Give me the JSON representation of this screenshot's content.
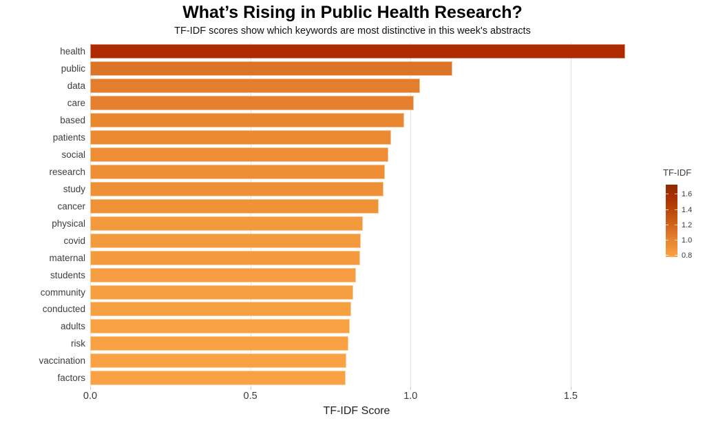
{
  "header": {
    "title": "What’s Rising in Public Health Research?",
    "subtitle": "TF-IDF scores show which keywords are most distinctive in this week's abstracts"
  },
  "chart_data": {
    "type": "bar",
    "orientation": "horizontal",
    "title": "What’s Rising in Public Health Research?",
    "subtitle": "TF-IDF scores show which keywords are most distinctive in this week's abstracts",
    "xlabel": "TF-IDF Score",
    "ylabel": "",
    "xlim": [
      0,
      1.73
    ],
    "x_ticks": [
      0,
      0.5,
      1.0,
      1.5
    ],
    "x_tick_labels": [
      "0.0",
      "0.5",
      "1.0",
      "1.5"
    ],
    "grid": true,
    "categories": [
      "health",
      "public",
      "data",
      "care",
      "based",
      "patients",
      "social",
      "research",
      "study",
      "cancer",
      "physical",
      "covid",
      "maternal",
      "students",
      "community",
      "conducted",
      "adults",
      "risk",
      "vaccination",
      "factors"
    ],
    "values": [
      1.67,
      1.13,
      1.03,
      1.01,
      0.98,
      0.94,
      0.93,
      0.92,
      0.915,
      0.9,
      0.85,
      0.845,
      0.842,
      0.83,
      0.82,
      0.815,
      0.81,
      0.805,
      0.8,
      0.798
    ],
    "bar_colors": [
      "#AE2B02",
      "#DC7428",
      "#E37E2C",
      "#E5812E",
      "#E98630",
      "#EC8A32",
      "#ED8D34",
      "#EE8F35",
      "#EE9036",
      "#EF9137",
      "#F39A3D",
      "#F39A3D",
      "#F49B3E",
      "#F59D40",
      "#F69F41",
      "#F6A041",
      "#F7A142",
      "#F7A142",
      "#F8A243",
      "#F8A243"
    ],
    "legend": {
      "title": "TF-IDF",
      "position": "right",
      "kind": "gradient",
      "domain": [
        0.775,
        1.72
      ],
      "tick_values": [
        1.6,
        1.4,
        1.2,
        1.0,
        0.8
      ],
      "tick_labels": [
        "1.6",
        "1.4",
        "1.2",
        "1.0",
        "0.8"
      ],
      "gradient_stops": [
        {
          "value": 0.775,
          "color": "#F9A445"
        },
        {
          "value": 0.9,
          "color": "#EF9036"
        },
        {
          "value": 1.0,
          "color": "#E8832F"
        },
        {
          "value": 1.2,
          "color": "#D0631A"
        },
        {
          "value": 1.4,
          "color": "#BA4407"
        },
        {
          "value": 1.55,
          "color": "#A93103"
        },
        {
          "value": 1.72,
          "color": "#8E2A03"
        }
      ]
    }
  }
}
